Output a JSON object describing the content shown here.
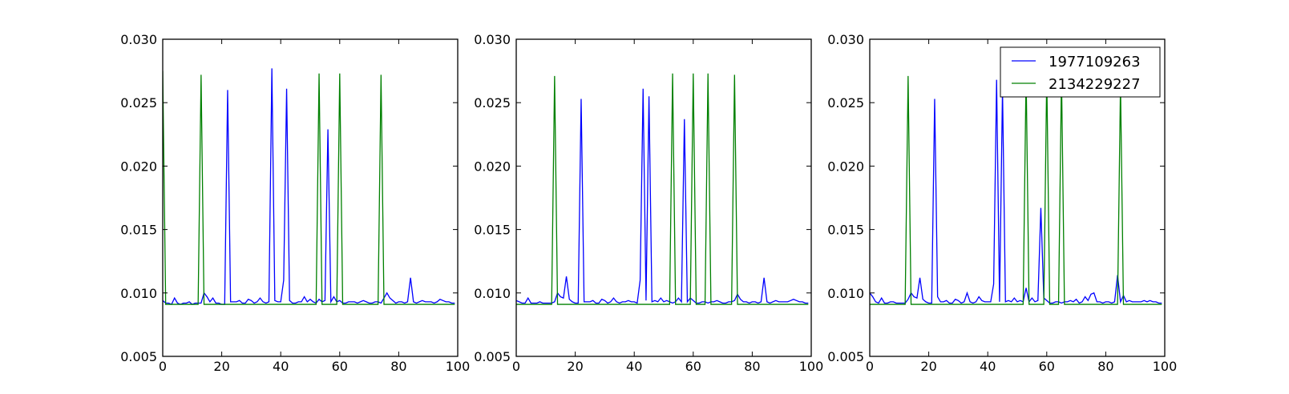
{
  "chart_data": [
    {
      "type": "line",
      "xlim": [
        0,
        100
      ],
      "ylim": [
        0.005,
        0.03
      ],
      "xticks": [
        "0",
        "20",
        "40",
        "60",
        "80",
        "100"
      ],
      "yticks": [
        "0.005",
        "0.010",
        "0.015",
        "0.020",
        "0.025",
        "0.030"
      ],
      "legend": null,
      "series": [
        {
          "name": "1977109263",
          "color": "#0000ff",
          "x": [
            0,
            1,
            2,
            3,
            4,
            5,
            6,
            7,
            8,
            9,
            10,
            11,
            12,
            13,
            14,
            15,
            16,
            17,
            18,
            19,
            20,
            21,
            22,
            23,
            24,
            25,
            26,
            27,
            28,
            29,
            30,
            31,
            32,
            33,
            34,
            35,
            36,
            37,
            38,
            39,
            40,
            41,
            42,
            43,
            44,
            45,
            46,
            47,
            48,
            49,
            50,
            51,
            52,
            53,
            54,
            55,
            56,
            57,
            58,
            59,
            60,
            61,
            62,
            63,
            64,
            65,
            66,
            67,
            68,
            69,
            70,
            71,
            72,
            73,
            74,
            75,
            76,
            77,
            78,
            79,
            80,
            81,
            82,
            83,
            84,
            85,
            86,
            87,
            88,
            89,
            90,
            91,
            92,
            93,
            94,
            95,
            96,
            97,
            98,
            99
          ],
          "y": [
            0.0094,
            0.0092,
            0.0092,
            0.0091,
            0.0096,
            0.0092,
            0.0091,
            0.0092,
            0.0092,
            0.0093,
            0.0091,
            0.0092,
            0.0092,
            0.0092,
            0.01,
            0.0097,
            0.0093,
            0.0096,
            0.0092,
            0.0092,
            0.0091,
            0.0091,
            0.026,
            0.0093,
            0.0093,
            0.0093,
            0.0094,
            0.0092,
            0.0092,
            0.0095,
            0.0094,
            0.0092,
            0.0093,
            0.0096,
            0.0093,
            0.0092,
            0.0093,
            0.0277,
            0.0094,
            0.0093,
            0.0093,
            0.011,
            0.0261,
            0.0094,
            0.0092,
            0.0092,
            0.0093,
            0.0093,
            0.0097,
            0.0093,
            0.0095,
            0.0093,
            0.0092,
            0.0095,
            0.0093,
            0.0094,
            0.0229,
            0.0093,
            0.0097,
            0.0093,
            0.0094,
            0.0092,
            0.0092,
            0.0093,
            0.0093,
            0.0093,
            0.0092,
            0.0093,
            0.0094,
            0.0093,
            0.0092,
            0.0092,
            0.0093,
            0.0093,
            0.0092,
            0.0096,
            0.01,
            0.0096,
            0.0094,
            0.0092,
            0.0093,
            0.0093,
            0.0092,
            0.0093,
            0.0112,
            0.0093,
            0.0092,
            0.0093,
            0.0094,
            0.0093,
            0.0093,
            0.0093,
            0.0092,
            0.0093,
            0.0095,
            0.0094,
            0.0093,
            0.0093,
            0.0092,
            0.0092
          ]
        },
        {
          "name": "2134229227",
          "color": "#008000",
          "x": [
            0,
            1,
            12,
            13,
            14,
            52,
            53,
            54,
            59,
            60,
            61,
            73,
            74,
            75,
            99
          ],
          "y": [
            0.0275,
            0.0091,
            0.0091,
            0.0272,
            0.0091,
            0.0091,
            0.0273,
            0.0091,
            0.0091,
            0.0273,
            0.0091,
            0.0091,
            0.0272,
            0.0091,
            0.0091
          ]
        }
      ]
    },
    {
      "type": "line",
      "xlim": [
        0,
        100
      ],
      "ylim": [
        0.005,
        0.03
      ],
      "xticks": [
        "0",
        "20",
        "40",
        "60",
        "80",
        "100"
      ],
      "yticks": [
        "0.005",
        "0.010",
        "0.015",
        "0.020",
        "0.025",
        "0.030"
      ],
      "legend": null,
      "series": [
        {
          "name": "1977109263",
          "color": "#0000ff",
          "x": [
            0,
            1,
            2,
            3,
            4,
            5,
            6,
            7,
            8,
            9,
            10,
            11,
            12,
            13,
            14,
            15,
            16,
            17,
            18,
            19,
            20,
            21,
            22,
            23,
            24,
            25,
            26,
            27,
            28,
            29,
            30,
            31,
            32,
            33,
            34,
            35,
            36,
            37,
            38,
            39,
            40,
            41,
            42,
            43,
            44,
            45,
            46,
            47,
            48,
            49,
            50,
            51,
            52,
            53,
            54,
            55,
            56,
            57,
            58,
            59,
            60,
            61,
            62,
            63,
            64,
            65,
            66,
            67,
            68,
            69,
            70,
            71,
            72,
            73,
            74,
            75,
            76,
            77,
            78,
            79,
            80,
            81,
            82,
            83,
            84,
            85,
            86,
            87,
            88,
            89,
            90,
            91,
            92,
            93,
            94,
            95,
            96,
            97,
            98,
            99
          ],
          "y": [
            0.0094,
            0.0093,
            0.0092,
            0.0092,
            0.0096,
            0.0092,
            0.0092,
            0.0092,
            0.0093,
            0.0092,
            0.0092,
            0.0092,
            0.0092,
            0.0093,
            0.01,
            0.0097,
            0.0096,
            0.0113,
            0.0095,
            0.0093,
            0.0092,
            0.0092,
            0.0253,
            0.0093,
            0.0093,
            0.0093,
            0.0094,
            0.0092,
            0.0092,
            0.0095,
            0.0094,
            0.0092,
            0.0093,
            0.0096,
            0.0093,
            0.0092,
            0.0093,
            0.0093,
            0.0094,
            0.0093,
            0.0093,
            0.0092,
            0.011,
            0.0261,
            0.0094,
            0.0255,
            0.0093,
            0.0094,
            0.0093,
            0.0096,
            0.0093,
            0.0094,
            0.0093,
            0.0092,
            0.0093,
            0.0096,
            0.0093,
            0.0237,
            0.0093,
            0.0096,
            0.0094,
            0.0092,
            0.0092,
            0.0093,
            0.0093,
            0.0092,
            0.0093,
            0.0093,
            0.0094,
            0.0093,
            0.0092,
            0.0092,
            0.0093,
            0.0093,
            0.0094,
            0.0099,
            0.0095,
            0.0093,
            0.0093,
            0.0092,
            0.0093,
            0.0093,
            0.0092,
            0.0093,
            0.0112,
            0.0093,
            0.0092,
            0.0093,
            0.0094,
            0.0093,
            0.0093,
            0.0093,
            0.0093,
            0.0094,
            0.0095,
            0.0094,
            0.0093,
            0.0093,
            0.0092,
            0.0092
          ]
        },
        {
          "name": "2134229227",
          "color": "#008000",
          "x": [
            0,
            12,
            13,
            14,
            52,
            53,
            54,
            59,
            60,
            61,
            64,
            65,
            66,
            73,
            74,
            75,
            99
          ],
          "y": [
            0.0091,
            0.0091,
            0.0271,
            0.0091,
            0.0091,
            0.0273,
            0.0091,
            0.0091,
            0.0273,
            0.0091,
            0.0091,
            0.0273,
            0.0091,
            0.0091,
            0.0272,
            0.0091,
            0.0091
          ]
        }
      ]
    },
    {
      "type": "line",
      "xlim": [
        0,
        100
      ],
      "ylim": [
        0.005,
        0.03
      ],
      "xticks": [
        "0",
        "20",
        "40",
        "60",
        "80",
        "100"
      ],
      "yticks": [
        "0.005",
        "0.010",
        "0.015",
        "0.020",
        "0.025",
        "0.030"
      ],
      "legend": "top-right",
      "series": [
        {
          "name": "1977109263",
          "color": "#0000ff",
          "x": [
            0,
            1,
            2,
            3,
            4,
            5,
            6,
            7,
            8,
            9,
            10,
            11,
            12,
            13,
            14,
            15,
            16,
            17,
            18,
            19,
            20,
            21,
            22,
            23,
            24,
            25,
            26,
            27,
            28,
            29,
            30,
            31,
            32,
            33,
            34,
            35,
            36,
            37,
            38,
            39,
            40,
            41,
            42,
            43,
            44,
            45,
            46,
            47,
            48,
            49,
            50,
            51,
            52,
            53,
            54,
            55,
            56,
            57,
            58,
            59,
            60,
            61,
            62,
            63,
            64,
            65,
            66,
            67,
            68,
            69,
            70,
            71,
            72,
            73,
            74,
            75,
            76,
            77,
            78,
            79,
            80,
            81,
            82,
            83,
            84,
            85,
            86,
            87,
            88,
            89,
            90,
            91,
            92,
            93,
            94,
            95,
            96,
            97,
            98,
            99
          ],
          "y": [
            0.01,
            0.0097,
            0.0093,
            0.0092,
            0.0096,
            0.0092,
            0.0092,
            0.0093,
            0.0093,
            0.0092,
            0.0092,
            0.0092,
            0.0092,
            0.0095,
            0.01,
            0.0097,
            0.0096,
            0.0112,
            0.0095,
            0.0093,
            0.0092,
            0.0092,
            0.0253,
            0.0097,
            0.0093,
            0.0093,
            0.0094,
            0.0092,
            0.0092,
            0.0095,
            0.0094,
            0.0092,
            0.0093,
            0.01,
            0.0093,
            0.0092,
            0.0093,
            0.0097,
            0.0094,
            0.0093,
            0.0093,
            0.0093,
            0.0107,
            0.0268,
            0.0093,
            0.0261,
            0.0093,
            0.0094,
            0.0093,
            0.0096,
            0.0093,
            0.0094,
            0.0093,
            0.0104,
            0.0093,
            0.0096,
            0.0093,
            0.0094,
            0.0167,
            0.0096,
            0.0094,
            0.0092,
            0.0092,
            0.0093,
            0.0093,
            0.0092,
            0.0093,
            0.0093,
            0.0094,
            0.0093,
            0.0095,
            0.0092,
            0.0093,
            0.0097,
            0.0094,
            0.0099,
            0.01,
            0.0093,
            0.0093,
            0.0092,
            0.0093,
            0.0093,
            0.0092,
            0.0093,
            0.0114,
            0.0093,
            0.0098,
            0.0093,
            0.0094,
            0.0093,
            0.0093,
            0.0093,
            0.0093,
            0.0094,
            0.0093,
            0.0094,
            0.0093,
            0.0093,
            0.0092,
            0.0092
          ]
        },
        {
          "name": "2134229227",
          "color": "#008000",
          "x": [
            0,
            12,
            13,
            14,
            52,
            53,
            54,
            59,
            60,
            61,
            64,
            65,
            66,
            84,
            85,
            86,
            99
          ],
          "y": [
            0.0091,
            0.0091,
            0.0271,
            0.0091,
            0.0091,
            0.0273,
            0.0091,
            0.0091,
            0.0272,
            0.0091,
            0.0091,
            0.0272,
            0.0091,
            0.0091,
            0.0265,
            0.0091,
            0.0091
          ]
        }
      ]
    }
  ]
}
